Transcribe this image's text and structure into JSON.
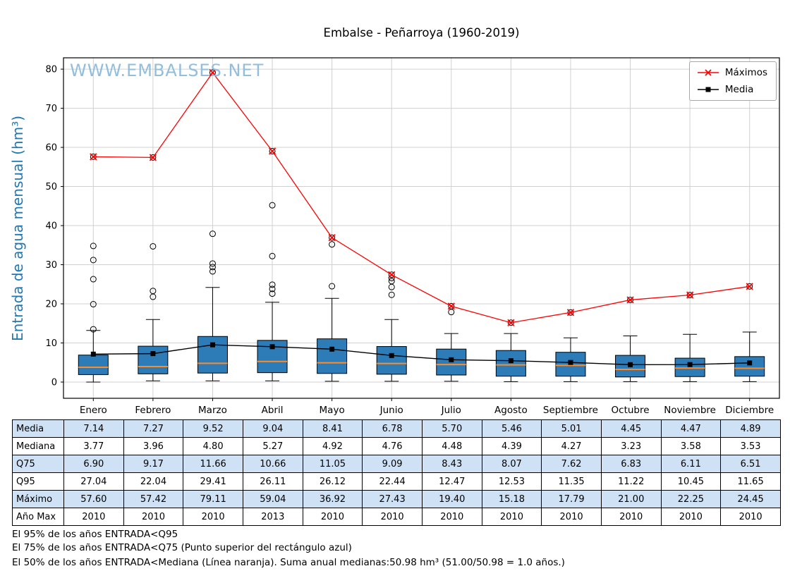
{
  "title": "Embalse - Peñarroya (1960-2019)",
  "watermark": "WWW.EMBALSES.NET",
  "chart_data": {
    "type": "boxplot",
    "title": "Embalse - Peñarroya (1960-2019)",
    "xlabel": "",
    "ylabel": "Entrada de agua mensual (hm³)",
    "ylim": [
      -4.15,
      82.9
    ],
    "yticks": [
      0,
      10,
      20,
      30,
      40,
      50,
      60,
      70,
      80
    ],
    "grid": true,
    "grid_color": "#d0d0d0",
    "box_fill": "#2d7cb8",
    "box_edge": "#000000",
    "median_color": "#ff8c26",
    "legend_position": "top-right",
    "categories": [
      "Enero",
      "Febrero",
      "Marzo",
      "Abril",
      "Mayo",
      "Junio",
      "Julio",
      "Agosto",
      "Septiembre",
      "Octubre",
      "Noviembre",
      "Diciembre"
    ],
    "series": [
      {
        "name": "Máximos",
        "marker": "x",
        "color": "#ff0000",
        "values": [
          57.6,
          57.42,
          79.11,
          59.04,
          36.92,
          27.43,
          19.4,
          15.18,
          17.79,
          21.0,
          22.25,
          24.45
        ]
      },
      {
        "name": "Media",
        "marker": "square",
        "color": "#000000",
        "values": [
          7.14,
          7.27,
          9.52,
          9.04,
          8.41,
          6.78,
          5.7,
          5.46,
          5.01,
          4.45,
          4.47,
          4.89
        ]
      }
    ],
    "boxes": [
      {
        "q1": 1.9,
        "median": 3.77,
        "q3": 6.9,
        "whisker_low": 0.0,
        "whisker_high": 13.2,
        "outliers": [
          13.5,
          19.9,
          26.3,
          31.2,
          34.8,
          57.6
        ]
      },
      {
        "q1": 2.1,
        "median": 3.96,
        "q3": 9.17,
        "whisker_low": 0.3,
        "whisker_high": 16.0,
        "outliers": [
          21.8,
          23.3,
          34.7,
          57.42
        ]
      },
      {
        "q1": 2.3,
        "median": 4.8,
        "q3": 11.66,
        "whisker_low": 0.3,
        "whisker_high": 24.2,
        "outliers": [
          28.3,
          29.4,
          30.3,
          37.9,
          79.11
        ]
      },
      {
        "q1": 2.4,
        "median": 5.27,
        "q3": 10.66,
        "whisker_low": 0.3,
        "whisker_high": 20.4,
        "outliers": [
          22.6,
          23.8,
          24.9,
          32.2,
          45.2,
          59.04
        ]
      },
      {
        "q1": 2.2,
        "median": 4.92,
        "q3": 11.05,
        "whisker_low": 0.2,
        "whisker_high": 21.4,
        "outliers": [
          24.5,
          35.2,
          36.92
        ]
      },
      {
        "q1": 2.0,
        "median": 4.76,
        "q3": 9.09,
        "whisker_low": 0.2,
        "whisker_high": 16.0,
        "outliers": [
          22.3,
          24.3,
          25.8,
          26.6,
          27.43
        ]
      },
      {
        "q1": 1.8,
        "median": 4.48,
        "q3": 8.43,
        "whisker_low": 0.2,
        "whisker_high": 12.4,
        "outliers": [
          17.9,
          19.4
        ]
      },
      {
        "q1": 1.5,
        "median": 4.39,
        "q3": 8.07,
        "whisker_low": 0.1,
        "whisker_high": 12.4,
        "outliers": [
          15.18
        ]
      },
      {
        "q1": 1.5,
        "median": 4.27,
        "q3": 7.62,
        "whisker_low": 0.1,
        "whisker_high": 11.3,
        "outliers": [
          17.79
        ]
      },
      {
        "q1": 1.3,
        "median": 3.23,
        "q3": 6.83,
        "whisker_low": 0.1,
        "whisker_high": 11.8,
        "outliers": [
          21.0
        ]
      },
      {
        "q1": 1.4,
        "median": 3.58,
        "q3": 6.11,
        "whisker_low": 0.1,
        "whisker_high": 12.2,
        "outliers": [
          22.25
        ]
      },
      {
        "q1": 1.5,
        "median": 3.53,
        "q3": 6.51,
        "whisker_low": 0.1,
        "whisker_high": 12.8,
        "outliers": [
          24.45
        ]
      }
    ]
  },
  "table": {
    "row_labels": [
      "Media",
      "Mediana",
      "Q75",
      "Q95",
      "Máximo",
      "Año Max"
    ],
    "columns": [
      "Enero",
      "Febrero",
      "Marzo",
      "Abril",
      "Mayo",
      "Junio",
      "Julio",
      "Agosto",
      "Septiembre",
      "Octubre",
      "Noviembre",
      "Diciembre"
    ],
    "shaded_rows": [
      0,
      2,
      4
    ],
    "shade_color": "#cfe1f5",
    "rows": [
      [
        "7.14",
        "7.27",
        "9.52",
        "9.04",
        "8.41",
        "6.78",
        "5.70",
        "5.46",
        "5.01",
        "4.45",
        "4.47",
        "4.89"
      ],
      [
        "3.77",
        "3.96",
        "4.80",
        "5.27",
        "4.92",
        "4.76",
        "4.48",
        "4.39",
        "4.27",
        "3.23",
        "3.58",
        "3.53"
      ],
      [
        "6.90",
        "9.17",
        "11.66",
        "10.66",
        "11.05",
        "9.09",
        "8.43",
        "8.07",
        "7.62",
        "6.83",
        "6.11",
        "6.51"
      ],
      [
        "27.04",
        "22.04",
        "29.41",
        "26.11",
        "26.12",
        "22.44",
        "12.47",
        "12.53",
        "11.35",
        "11.22",
        "10.45",
        "11.65"
      ],
      [
        "57.60",
        "57.42",
        "79.11",
        "59.04",
        "36.92",
        "27.43",
        "19.40",
        "15.18",
        "17.79",
        "21.00",
        "22.25",
        "24.45"
      ],
      [
        "2010",
        "2010",
        "2010",
        "2013",
        "2010",
        "2010",
        "2010",
        "2010",
        "2010",
        "2010",
        "2010",
        "2010"
      ]
    ]
  },
  "footnotes": [
    "El 95% de los años ENTRADA<Q95",
    "El 75% de los años ENTRADA<Q75 (Punto superior del rectángulo azul)",
    "El 50% de los años ENTRADA<Mediana (Línea naranja). Suma anual medianas:50.98 hm³ (51.00/50.98 = 1.0 años.)"
  ]
}
